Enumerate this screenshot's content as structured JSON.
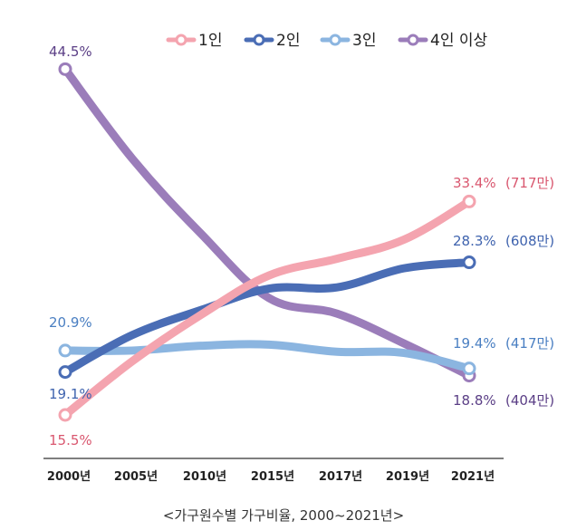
{
  "caption": "<가구원수별 가구비율, 2000~2021년>",
  "chart_data": {
    "type": "line",
    "categories": [
      "2000년",
      "2005년",
      "2010년",
      "2015년",
      "2017년",
      "2019년",
      "2021년"
    ],
    "series": [
      {
        "name": "1인",
        "color": "#F4A4AF",
        "label_color": "#D9576F",
        "values": [
          15.5,
          20.0,
          23.9,
          27.2,
          28.6,
          30.2,
          33.4
        ],
        "start_label": "15.5%",
        "end_label": "33.4%",
        "end_count": "(717만)"
      },
      {
        "name": "2인",
        "color": "#4A6DB5",
        "label_color": "#3F63AE",
        "values": [
          19.1,
          22.2,
          24.3,
          26.1,
          26.2,
          27.8,
          28.3
        ],
        "start_label": "19.1%",
        "end_label": "28.3%",
        "end_count": "(608만)"
      },
      {
        "name": "3인",
        "color": "#8BB5E0",
        "label_color": "#4A7FC2",
        "values": [
          20.9,
          20.9,
          21.3,
          21.4,
          20.8,
          20.7,
          19.4
        ],
        "start_label": "20.9%",
        "end_label": "19.4%",
        "end_count": "(417만)"
      },
      {
        "name": "4인 이상",
        "color": "#9B7DBA",
        "label_color": "#5B3F86",
        "values": [
          44.5,
          37.0,
          30.7,
          25.3,
          24.0,
          21.5,
          18.8
        ],
        "start_label": "44.5%",
        "end_label": "18.8%",
        "end_count": "(404만)"
      }
    ]
  }
}
